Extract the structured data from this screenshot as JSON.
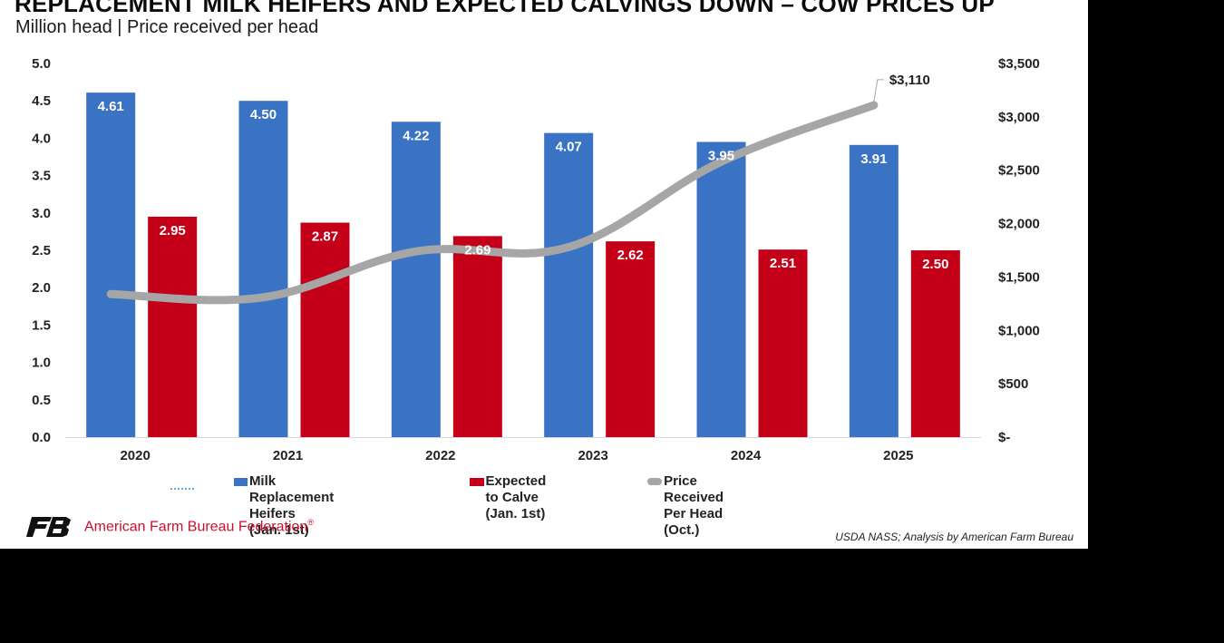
{
  "header": {
    "title": "REPLACEMENT MILK HEIFERS AND EXPECTED CALVINGS DOWN – COW PRICES UP",
    "subtitle": "Million head | Price received per head"
  },
  "chart_data": {
    "type": "bar",
    "categories": [
      "2020",
      "2021",
      "2022",
      "2023",
      "2024",
      "2025"
    ],
    "series": [
      {
        "name": "Milk Replacement Heifers (Jan. 1st)",
        "type": "bar",
        "axis": "left",
        "color": "#3a73c3",
        "values": [
          4.61,
          4.5,
          4.22,
          4.07,
          3.95,
          3.91
        ],
        "labels": [
          "4.61",
          "4.50",
          "4.22",
          "4.07",
          "3.95",
          "3.91"
        ]
      },
      {
        "name": "Expected to Calve (Jan. 1st)",
        "type": "bar",
        "axis": "left",
        "color": "#c30017",
        "values": [
          2.95,
          2.87,
          2.69,
          2.62,
          2.51,
          2.5
        ],
        "labels": [
          "2.95",
          "2.87",
          "2.69",
          "2.62",
          "2.51",
          "2.50"
        ]
      },
      {
        "name": "Price Received Per Head (Oct.)",
        "type": "line",
        "axis": "right",
        "color": "#a6a6a6",
        "values": [
          1340,
          1310,
          1740,
          1780,
          2580,
          3110
        ],
        "end_label": "$3,110"
      }
    ],
    "y_left": {
      "min": 0,
      "max": 5,
      "ticks": [
        "0.0",
        "0.5",
        "1.0",
        "1.5",
        "2.0",
        "2.5",
        "3.0",
        "3.5",
        "4.0",
        "4.5",
        "5.0"
      ]
    },
    "y_right": {
      "min": 0,
      "max": 3500,
      "ticks": [
        "$-",
        "$500",
        "$1,000",
        "$1,500",
        "$2,000",
        "$2,500",
        "$3,000",
        "$3,500"
      ]
    },
    "legend": {
      "position": "bottom",
      "items": [
        {
          "line1": "Milk Replacement Heifers",
          "line2": "(Jan. 1st)"
        },
        {
          "line1": "Expected to Calve",
          "line2": "(Jan. 1st)"
        },
        {
          "line1": "Price Received Per Head",
          "line2": "(Oct.)"
        }
      ]
    },
    "grid": false
  },
  "footer": {
    "organization": "American Farm Bureau Federation",
    "org_mark": "®",
    "source": "USDA NASS; Analysis by American Farm Bureau",
    "logo_icon": "afbf-logo-icon"
  }
}
